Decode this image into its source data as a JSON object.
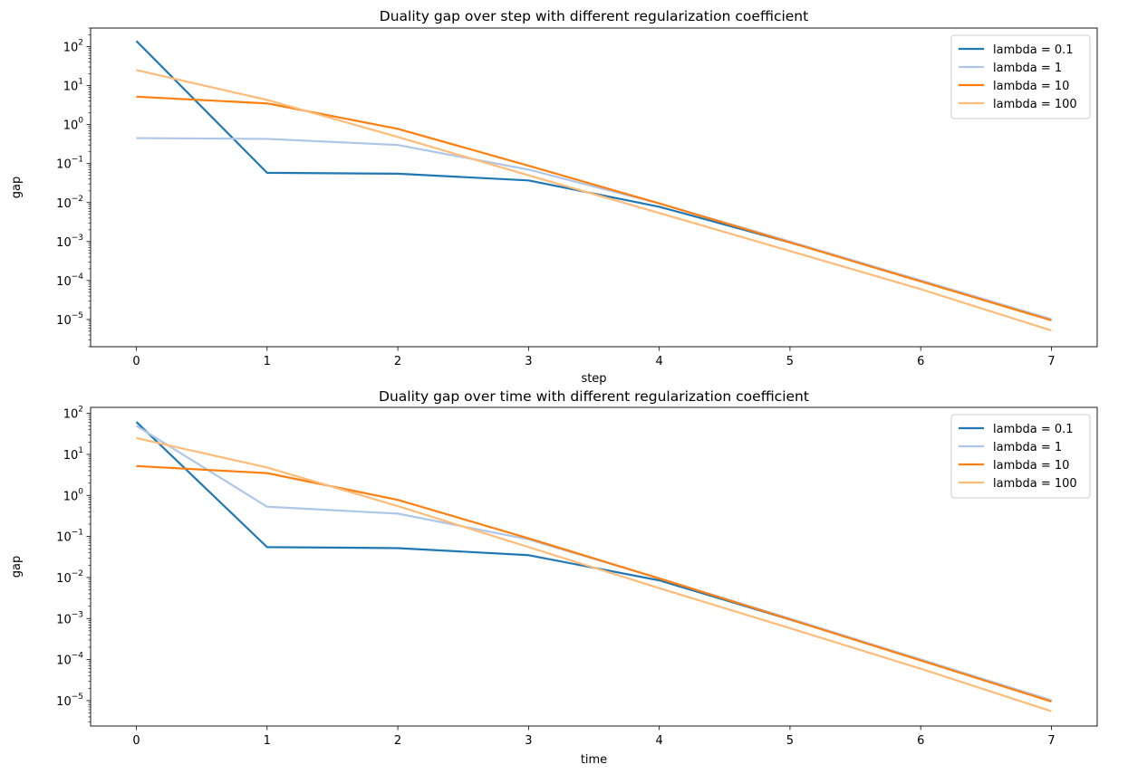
{
  "chart_data": [
    {
      "type": "line",
      "title": "Duality gap over step with different regularization coefficient",
      "xlabel": "step",
      "ylabel": "gap",
      "yscale": "log",
      "xlim": [
        -0.35,
        7.35
      ],
      "ylim": [
        2e-06,
        300
      ],
      "xticks": [
        0,
        1,
        2,
        3,
        4,
        5,
        6,
        7
      ],
      "xtick_labels": [
        "0",
        "1",
        "2",
        "3",
        "4",
        "5",
        "6",
        "7"
      ],
      "yticks": [
        1e-05,
        0.0001,
        0.001,
        0.01,
        0.1,
        1,
        10,
        100
      ],
      "ytick_labels": [
        {
          "base": "10",
          "exp": "−5"
        },
        {
          "base": "10",
          "exp": "−4"
        },
        {
          "base": "10",
          "exp": "−3"
        },
        {
          "base": "10",
          "exp": "−2"
        },
        {
          "base": "10",
          "exp": "−1"
        },
        {
          "base": "10",
          "exp": "0"
        },
        {
          "base": "10",
          "exp": "1"
        },
        {
          "base": "10",
          "exp": "2"
        }
      ],
      "grid": false,
      "legend_position": "top-right",
      "x": [
        0,
        1,
        2,
        3,
        4,
        5,
        6,
        7
      ],
      "series": [
        {
          "name": "lambda = 0.1",
          "color": "#1f77b4",
          "values": [
            140,
            0.058,
            0.055,
            0.037,
            0.0078,
            0.00095,
            0.0001,
            1e-05
          ]
        },
        {
          "name": "lambda = 1",
          "color": "#aec7e8",
          "values": [
            0.45,
            0.43,
            0.3,
            0.07,
            0.0095,
            0.001,
            0.0001,
            1.02e-05
          ]
        },
        {
          "name": "lambda = 10",
          "color": "#ff7f0e",
          "values": [
            5.2,
            3.5,
            0.78,
            0.088,
            0.0095,
            0.00095,
            9.5e-05,
            9.5e-06
          ]
        },
        {
          "name": "lambda = 100",
          "color": "#ffbb78",
          "values": [
            25,
            4.3,
            0.48,
            0.05,
            0.0054,
            0.00057,
            6e-05,
            5.2e-06
          ]
        }
      ]
    },
    {
      "type": "line",
      "title": "Duality gap over time with different regularization coefficient",
      "xlabel": "time",
      "ylabel": "gap",
      "yscale": "log",
      "xlim": [
        -0.35,
        7.35
      ],
      "ylim": [
        2.4e-06,
        140
      ],
      "xticks": [
        0,
        1,
        2,
        3,
        4,
        5,
        6,
        7
      ],
      "xtick_labels": [
        "0",
        "1",
        "2",
        "3",
        "4",
        "5",
        "6",
        "7"
      ],
      "yticks": [
        1e-05,
        0.0001,
        0.001,
        0.01,
        0.1,
        1,
        10,
        100
      ],
      "ytick_labels": [
        {
          "base": "10",
          "exp": "−5"
        },
        {
          "base": "10",
          "exp": "−4"
        },
        {
          "base": "10",
          "exp": "−3"
        },
        {
          "base": "10",
          "exp": "−2"
        },
        {
          "base": "10",
          "exp": "−1"
        },
        {
          "base": "10",
          "exp": "0"
        },
        {
          "base": "10",
          "exp": "1"
        },
        {
          "base": "10",
          "exp": "2"
        }
      ],
      "grid": false,
      "legend_position": "top-right",
      "x": [
        0,
        1,
        2,
        3,
        4,
        5,
        6,
        7
      ],
      "series": [
        {
          "name": "lambda = 0.1",
          "color": "#1f77b4",
          "values": [
            62,
            0.055,
            0.052,
            0.035,
            0.0085,
            0.00095,
            0.0001,
            1e-05
          ]
        },
        {
          "name": "lambda = 1",
          "color": "#aec7e8",
          "values": [
            50,
            0.53,
            0.36,
            0.085,
            0.0095,
            0.001,
            0.0001,
            1.02e-05
          ]
        },
        {
          "name": "lambda = 10",
          "color": "#ff7f0e",
          "values": [
            5.2,
            3.5,
            0.78,
            0.09,
            0.0095,
            0.00095,
            9.5e-05,
            9.5e-06
          ]
        },
        {
          "name": "lambda = 100",
          "color": "#ffbb78",
          "values": [
            25,
            4.8,
            0.55,
            0.055,
            0.0055,
            0.00058,
            6e-05,
            5.5e-06
          ]
        }
      ]
    }
  ]
}
